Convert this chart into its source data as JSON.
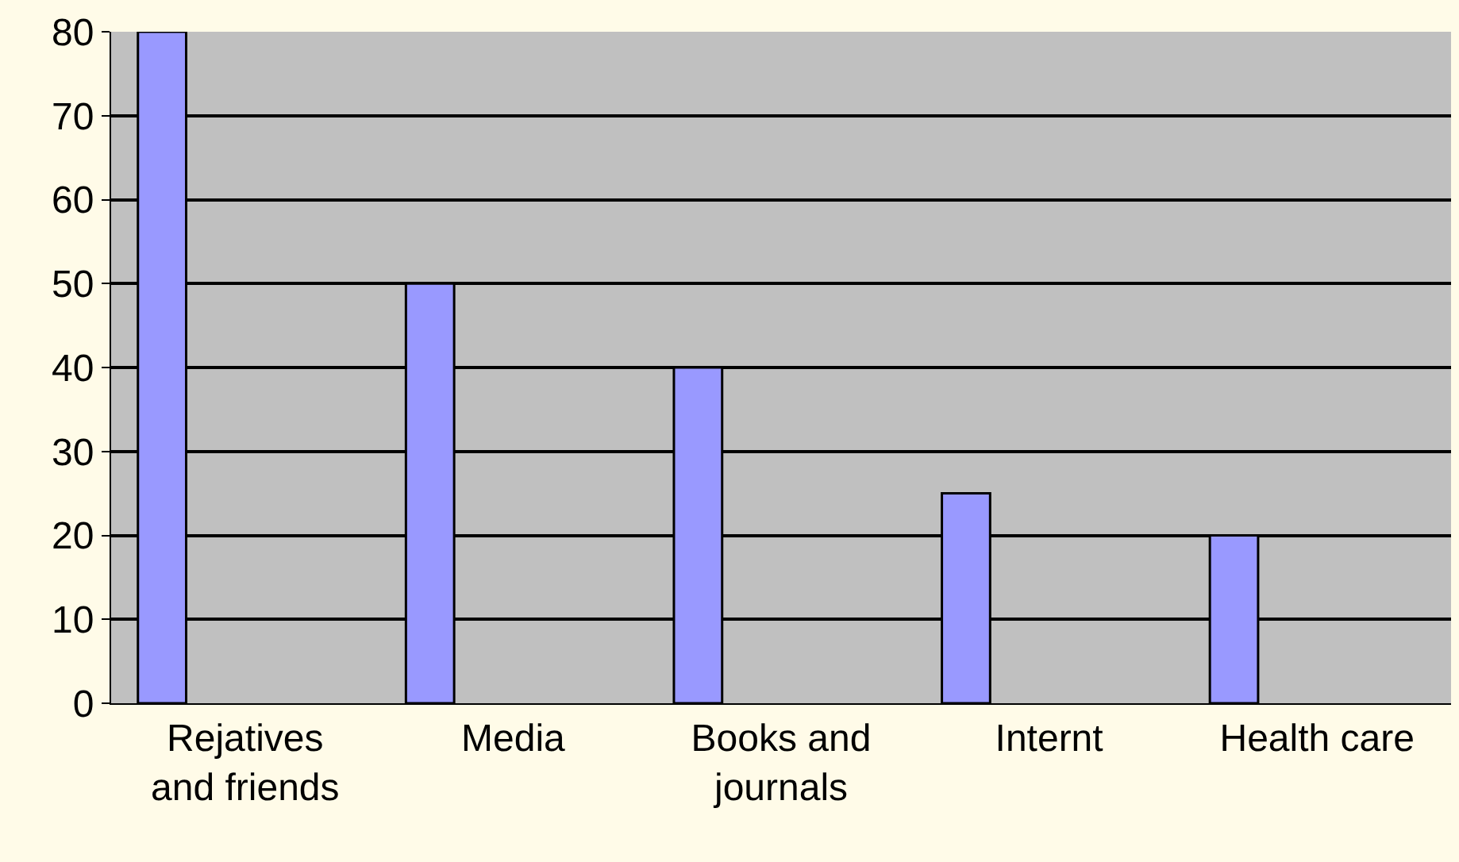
{
  "chart_data": {
    "type": "bar",
    "categories": [
      "Rejatives and friends",
      "Media",
      "Books and journals",
      "Internt",
      "Health care"
    ],
    "values": [
      80,
      50,
      40,
      25,
      20
    ],
    "color": "#9999ff",
    "ylim": [
      0,
      80
    ],
    "yticks": [
      0,
      10,
      20,
      30,
      40,
      50,
      60,
      70,
      80
    ],
    "grid": "y"
  }
}
